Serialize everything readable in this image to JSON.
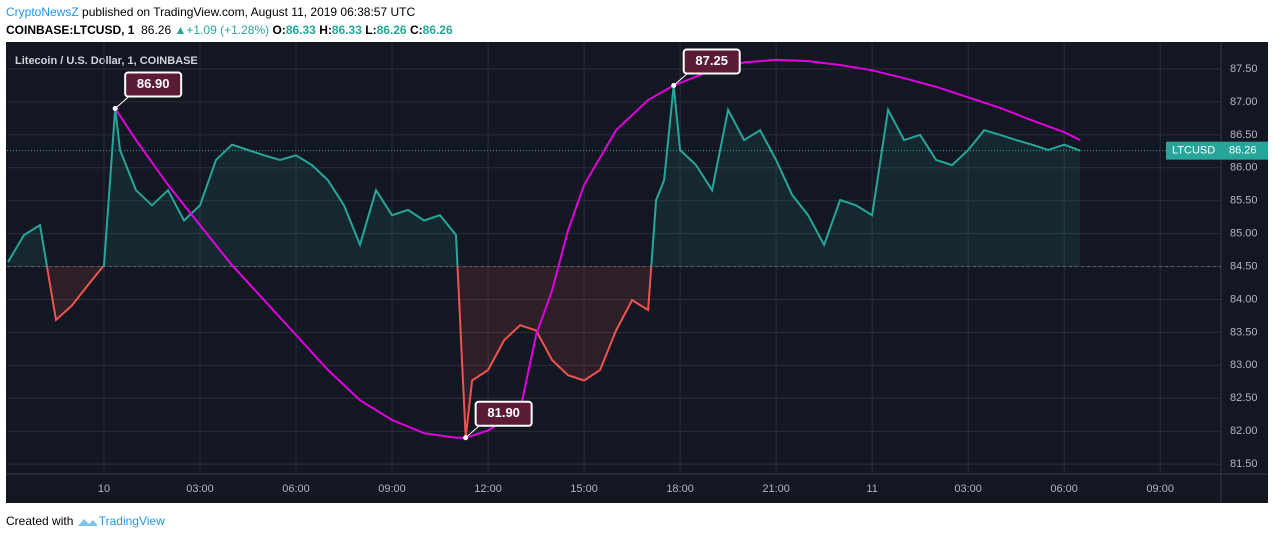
{
  "header": {
    "author": "CryptoNewsZ",
    "published": "published on TradingView.com, August 11, 2019 06:38:57 UTC",
    "symbol": "COINBASE:LTCUSD, 1",
    "last": "86.26",
    "change": "+1.09 (+1.28%)",
    "open_label": "O:",
    "open": "86.33",
    "high_label": "H:",
    "high": "86.33",
    "low_label": "L:",
    "low": "86.26",
    "close_label": "C:",
    "close": "86.26"
  },
  "footer": {
    "created": "Created with",
    "brand": "TradingView"
  },
  "chart_data": {
    "type": "line",
    "title": "Litecoin / U.S. Dollar, 1, COINBASE",
    "x": [
      -3,
      -2.5,
      -2,
      -1.5,
      -1,
      -0.5,
      0,
      0.35,
      0.5,
      1,
      1.5,
      2,
      2.5,
      3,
      3.5,
      4,
      4.5,
      5,
      5.5,
      6,
      6.5,
      7,
      7.5,
      8,
      8.5,
      9,
      9.5,
      10,
      10.5,
      11,
      11.3,
      11.5,
      12,
      12.5,
      13,
      13.5,
      14,
      14.5,
      15,
      15.5,
      16,
      16.5,
      17,
      17.25,
      17.5,
      17.8,
      18,
      18.5,
      19,
      19.5,
      20,
      20.5,
      21,
      21.5,
      22,
      22.5,
      23,
      23.5,
      24,
      24.5,
      25,
      25.5,
      26,
      26.5,
      27,
      27.5,
      28,
      28.5,
      29,
      29.5,
      30,
      30.5
    ],
    "values": [
      84.57,
      84.98,
      85.13,
      83.69,
      83.91,
      84.22,
      84.52,
      86.9,
      86.27,
      85.66,
      85.43,
      85.66,
      85.2,
      85.43,
      86.12,
      86.35,
      86.27,
      86.19,
      86.12,
      86.19,
      86.04,
      85.81,
      85.43,
      84.83,
      85.66,
      85.28,
      85.36,
      85.2,
      85.28,
      84.98,
      81.9,
      82.77,
      82.93,
      83.38,
      83.61,
      83.53,
      83.08,
      82.85,
      82.77,
      82.93,
      83.53,
      83.99,
      83.84,
      85.51,
      85.81,
      87.25,
      86.27,
      86.04,
      85.66,
      86.88,
      86.42,
      86.57,
      86.12,
      85.59,
      85.28,
      84.83,
      85.51,
      85.43,
      85.28,
      86.88,
      86.42,
      86.5,
      86.12,
      86.04,
      86.27,
      86.57,
      86.5,
      86.42,
      86.35,
      86.27,
      86.35,
      86.26
    ],
    "color_above": "#26a69a",
    "color_below": "#ef5350",
    "baseline": 84.5,
    "curve": {
      "color": "#e100e1",
      "x": [
        0.35,
        1,
        2,
        3,
        4,
        5,
        6,
        7,
        8,
        9,
        10,
        11,
        11.3,
        12,
        13,
        13.5,
        14,
        14.5,
        15,
        16,
        17,
        17.8,
        19,
        20,
        21,
        22,
        23,
        24,
        25,
        26,
        27,
        28,
        29,
        30,
        30.5
      ],
      "values": [
        86.9,
        86.42,
        85.74,
        85.13,
        84.52,
        83.99,
        83.46,
        82.93,
        82.47,
        82.17,
        81.97,
        81.9,
        81.9,
        82.01,
        82.32,
        83.46,
        84.14,
        85.05,
        85.74,
        86.57,
        87.03,
        87.25,
        87.48,
        87.6,
        87.64,
        87.62,
        87.56,
        87.48,
        87.36,
        87.23,
        87.07,
        86.91,
        86.72,
        86.54,
        86.42
      ]
    },
    "annotations": [
      {
        "x": 0.35,
        "value": 86.9,
        "label": "86.90"
      },
      {
        "x": 17.8,
        "value": 87.25,
        "label": "87.25"
      },
      {
        "x": 11.3,
        "value": 81.9,
        "label": "81.90"
      }
    ],
    "symbol_short": "LTCUSD",
    "last_price": {
      "value": 86.26,
      "label": "86.26"
    },
    "last_color": "#26a69a",
    "xlim": [
      -3.03,
      34.9
    ],
    "ylim": [
      81.35,
      87.91
    ],
    "xticks": [
      {
        "value": 0,
        "label": "10"
      },
      {
        "value": 3,
        "label": "03:00"
      },
      {
        "value": 6,
        "label": "06:00"
      },
      {
        "value": 9,
        "label": "09:00"
      },
      {
        "value": 12,
        "label": "12:00"
      },
      {
        "value": 15,
        "label": "15:00"
      },
      {
        "value": 18,
        "label": "18:00"
      },
      {
        "value": 21,
        "label": "21:00"
      },
      {
        "value": 24,
        "label": "11"
      },
      {
        "value": 27,
        "label": "03:00"
      },
      {
        "value": 30,
        "label": "06:00"
      },
      {
        "value": 33,
        "label": "09:00"
      }
    ],
    "yticks": [
      {
        "value": 81.5,
        "label": "81.50"
      },
      {
        "value": 82,
        "label": "82.00"
      },
      {
        "value": 82.5,
        "label": "82.50"
      },
      {
        "value": 83,
        "label": "83.00"
      },
      {
        "value": 83.5,
        "label": "83.50"
      },
      {
        "value": 84,
        "label": "84.00"
      },
      {
        "value": 84.5,
        "label": "84.50"
      },
      {
        "value": 85,
        "label": "85.00"
      },
      {
        "value": 85.5,
        "label": "85.50"
      },
      {
        "value": 86,
        "label": "86.00"
      },
      {
        "value": 86.5,
        "label": "86.50"
      },
      {
        "value": 87,
        "label": "87.00"
      },
      {
        "value": 87.5,
        "label": "87.50"
      }
    ],
    "grid": true
  }
}
